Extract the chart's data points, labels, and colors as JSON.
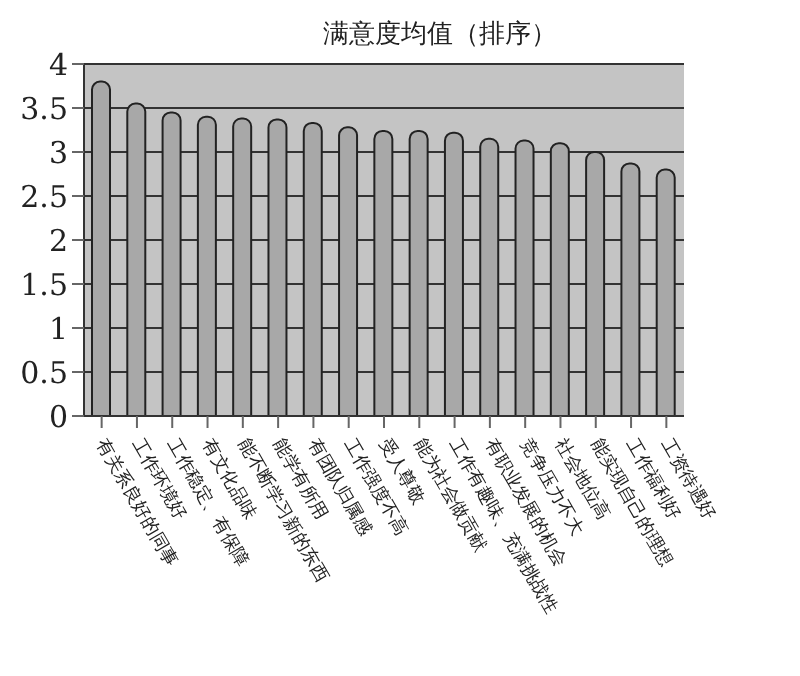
{
  "chart_data": {
    "type": "bar",
    "title": "满意度均值（排序）",
    "categories": [
      "有关系良好的同事",
      "工作环境好",
      "工作稳定、有保障",
      "有文化品味",
      "能不断学习新的东西",
      "能学有所用",
      "有团队归属感",
      "工作强度不高",
      "受人尊敬",
      "能为社会做贡献",
      "工作有趣味、充满挑战性",
      "有职业发展的机会",
      "竞争压力不大",
      "社会地位高",
      "能实现自己的理想",
      "工作福利好",
      "工资待遇好"
    ],
    "values": [
      3.8,
      3.55,
      3.45,
      3.4,
      3.38,
      3.37,
      3.33,
      3.28,
      3.24,
      3.24,
      3.22,
      3.15,
      3.13,
      3.1,
      3.0,
      2.87,
      2.8
    ],
    "color": "#a8a8a8",
    "ylim": [
      0,
      4
    ],
    "yticks": [
      0,
      0.5,
      1,
      1.5,
      2,
      2.5,
      3,
      3.5,
      4
    ],
    "grid": "y"
  }
}
